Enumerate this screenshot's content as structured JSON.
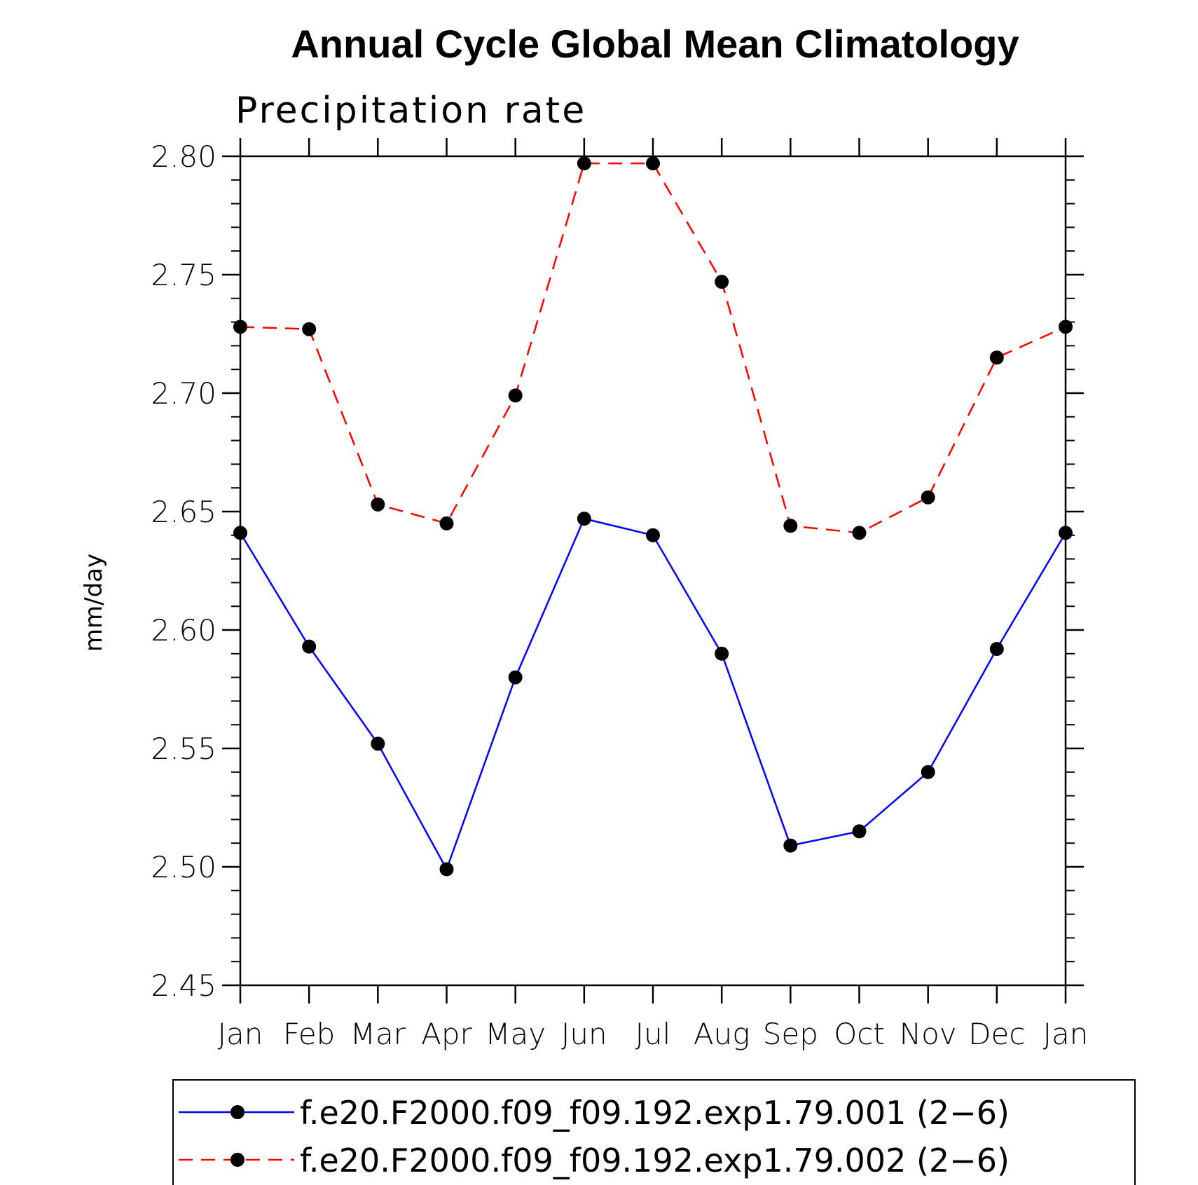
{
  "chart_data": {
    "type": "line",
    "title": "Annual Cycle Global Mean Climatology",
    "subtitle": "Precipitation rate",
    "xlabel": "",
    "ylabel": "mm/day",
    "categories": [
      "Jan",
      "Feb",
      "Mar",
      "Apr",
      "May",
      "Jun",
      "Jul",
      "Aug",
      "Sep",
      "Oct",
      "Nov",
      "Dec",
      "Jan"
    ],
    "ylim": [
      2.45,
      2.8
    ],
    "yticks": [
      "2.45",
      "2.50",
      "2.55",
      "2.60",
      "2.65",
      "2.70",
      "2.75",
      "2.80"
    ],
    "ytick_values": [
      2.45,
      2.5,
      2.55,
      2.6,
      2.65,
      2.7,
      2.75,
      2.8
    ],
    "yminor_step": 0.01,
    "grid": false,
    "legend_position": "bottom",
    "series": [
      {
        "name": "f.e20.F2000.f09_f09.192.exp1.79.001 (2−6)",
        "color": "#0000ff",
        "line_style": "solid",
        "marker": "filled-circle",
        "marker_color": "#000000",
        "values": [
          2.641,
          2.593,
          2.552,
          2.499,
          2.58,
          2.647,
          2.64,
          2.59,
          2.509,
          2.515,
          2.54,
          2.592,
          2.641
        ]
      },
      {
        "name": "f.e20.F2000.f09_f09.192.exp1.79.002 (2−6)",
        "color": "#ff0000",
        "line_style": "dashed",
        "marker": "filled-circle",
        "marker_color": "#000000",
        "values": [
          2.728,
          2.727,
          2.653,
          2.645,
          2.699,
          2.797,
          2.797,
          2.747,
          2.644,
          2.641,
          2.656,
          2.715,
          2.728
        ]
      }
    ]
  }
}
